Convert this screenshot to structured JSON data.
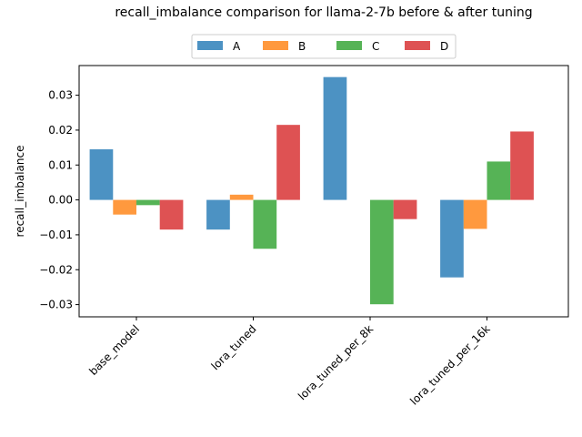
{
  "chart_data": {
    "type": "bar",
    "title": "recall_imbalance comparison for llama-2-7b before & after tuning",
    "xlabel": "",
    "ylabel": "recall_imbalance",
    "categories": [
      "base_model",
      "lora_tuned",
      "lora_tuned_per_8k",
      "lora_tuned_per_16k"
    ],
    "series": [
      {
        "name": "A",
        "color": "#1f77b4",
        "values": [
          0.0145,
          -0.0085,
          0.0352,
          -0.0222
        ]
      },
      {
        "name": "B",
        "color": "#ff7f0e",
        "values": [
          -0.0042,
          0.0015,
          0.0,
          -0.0083
        ]
      },
      {
        "name": "C",
        "color": "#2ca02c",
        "values": [
          -0.0015,
          -0.014,
          -0.0299,
          0.011
        ]
      },
      {
        "name": "D",
        "color": "#d62728",
        "values": [
          -0.0085,
          0.0215,
          -0.0055,
          0.0196
        ]
      }
    ],
    "ylim": [
      -0.0335,
      0.0385
    ],
    "yticks": [
      -0.03,
      -0.02,
      -0.01,
      0.0,
      0.01,
      0.02,
      0.03
    ],
    "ytick_labels": [
      "−0.03",
      "−0.02",
      "−0.01",
      "0.00",
      "0.01",
      "0.02",
      "0.03"
    ],
    "legend_position": "top-center",
    "grid": false
  }
}
